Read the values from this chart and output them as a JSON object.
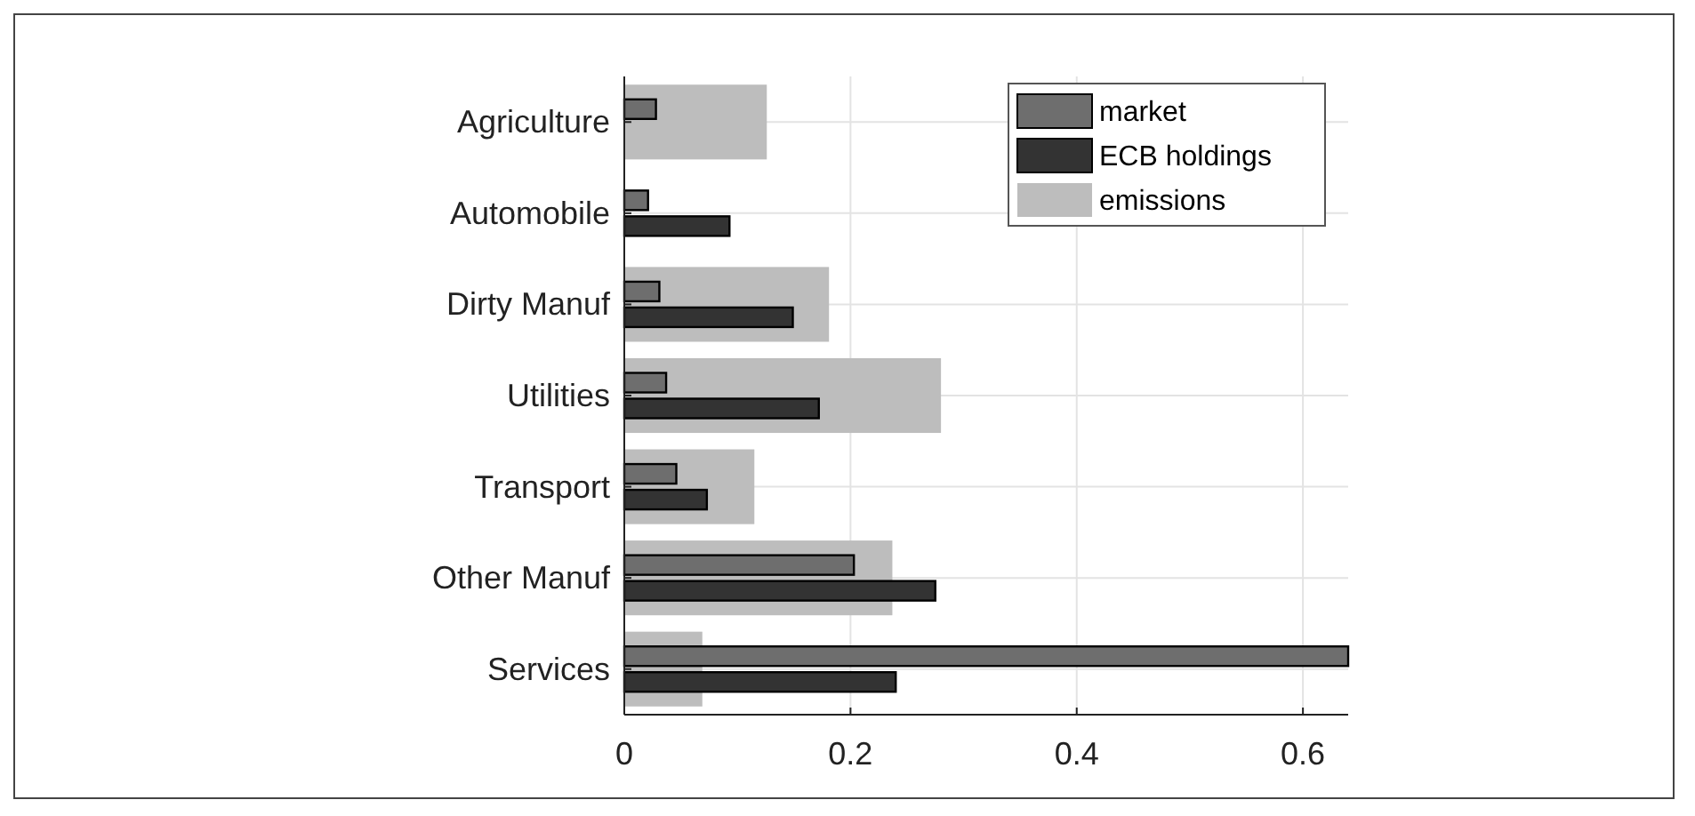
{
  "chart_data": {
    "type": "bar",
    "orientation": "horizontal",
    "categories": [
      "Agriculture",
      "Automobile",
      "Dirty Manuf",
      "Utilities",
      "Transport",
      "Other Manuf",
      "Services"
    ],
    "series": [
      {
        "name": "market",
        "color": "#6e6e6e",
        "values": [
          0.028,
          0.021,
          0.031,
          0.037,
          0.046,
          0.203,
          0.64
        ]
      },
      {
        "name": "ECB holdings",
        "color": "#333333",
        "values": [
          0,
          0.093,
          0.149,
          0.172,
          0.073,
          0.275,
          0.24
        ]
      },
      {
        "name": "emissions",
        "color": "#bdbdbd",
        "values": [
          0.126,
          0,
          0.181,
          0.28,
          0.115,
          0.237,
          0.069
        ]
      }
    ],
    "xlim": [
      0,
      0.64
    ],
    "xticks": [
      0,
      0.2,
      0.4,
      0.6
    ],
    "grid": true,
    "legend": "top right"
  }
}
